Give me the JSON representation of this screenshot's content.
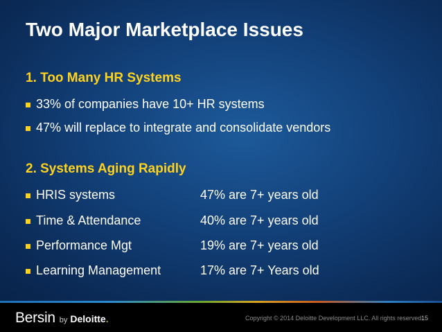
{
  "slide": {
    "title": "Two Major Marketplace Issues",
    "section1": {
      "heading": "1. Too Many HR Systems",
      "bullets": [
        "33% of companies have 10+ HR systems",
        "47% will replace to integrate and consolidate vendors"
      ]
    },
    "section2": {
      "heading": "2. Systems Aging Rapidly",
      "rows": [
        {
          "label": "HRIS systems",
          "value": "47% are 7+ years old"
        },
        {
          "label": "Time & Attendance",
          "value": "40% are 7+ years old"
        },
        {
          "label": "Performance Mgt",
          "value": "19% are 7+ years old"
        },
        {
          "label": "Learning Management",
          "value": "17% are 7+ Years old"
        }
      ]
    }
  },
  "footer": {
    "logo_bersin": "Bersin",
    "logo_by": "by",
    "logo_deloitte": "Deloitte",
    "logo_dot": ".",
    "copyright": "Copyright © 2014 Deloitte Development LLC. All rights reserved.",
    "page_number": "15"
  },
  "colors": {
    "heading_accent": "#ffd21e",
    "background": "#123f77",
    "deloitte_green": "#86bc25"
  }
}
